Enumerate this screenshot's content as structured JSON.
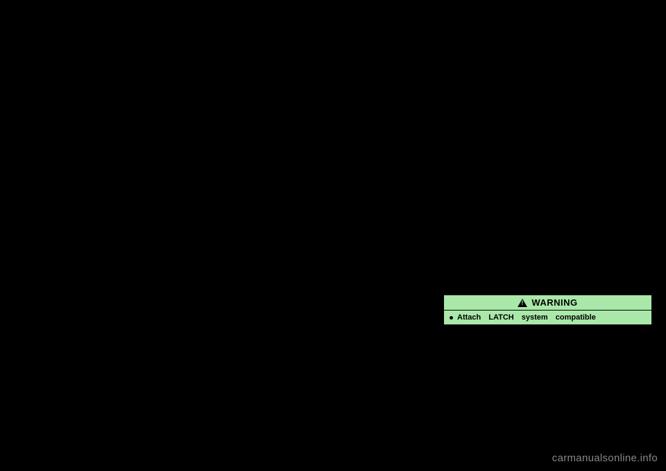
{
  "warning": {
    "header_label": "WARNING",
    "bullet_text": "Attach LATCH system compatible",
    "header_bg": "#a9e8a9",
    "body_bg": "#a9e8a9",
    "text_color": "#000000"
  },
  "watermark": {
    "text": "carmanualsonline.info",
    "color": "#888888"
  }
}
